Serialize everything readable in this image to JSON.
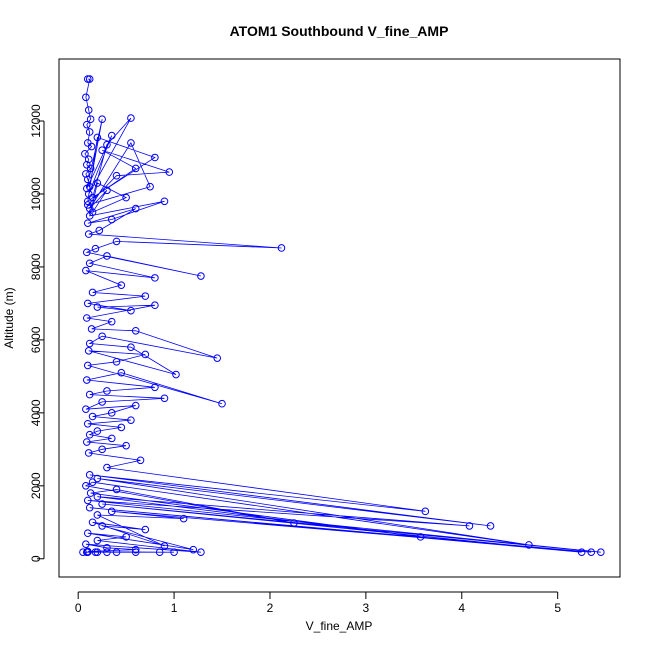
{
  "chart_data": {
    "type": "line",
    "title": "ATOM1 Southbound V_fine_AMP",
    "xlabel": "V_fine_AMP",
    "ylabel": "Altitude (m)",
    "xlim": [
      -0.2,
      5.65
    ],
    "ylim": [
      -500,
      13700
    ],
    "xticks": [
      0,
      1,
      2,
      3,
      4,
      5
    ],
    "yticks": [
      0,
      2000,
      4000,
      6000,
      8000,
      10000,
      12000
    ],
    "marker": "open-circle",
    "grid": false,
    "legend": "none",
    "color": "#0000ff",
    "series": [
      {
        "x": [
          0.1,
          0.12,
          0.08,
          0.11,
          0.13,
          0.09,
          0.12,
          0.1,
          0.14,
          0.07,
          0.11,
          0.09,
          0.13,
          0.08,
          0.1,
          0.12,
          0.25,
          0.09,
          0.35,
          0.11,
          0.55,
          0.3,
          0.15,
          0.8,
          0.2,
          0.1,
          0.6,
          0.25,
          0.95,
          0.4,
          0.1,
          0.75,
          0.55,
          0.12,
          0.3,
          0.15,
          0.5,
          0.2,
          0.12,
          0.9,
          0.35,
          0.1,
          0.6,
          0.22,
          0.11,
          2.12,
          0.4,
          0.18,
          0.09,
          1.28,
          0.3,
          0.12,
          0.8,
          0.08,
          0.45,
          0.15,
          0.7,
          0.1,
          0.55,
          0.2,
          0.8,
          0.09,
          0.35,
          0.14,
          0.6,
          1.45,
          0.25,
          0.12,
          0.55,
          1.02,
          0.11,
          0.7,
          0.4,
          0.1,
          1.5,
          0.45,
          0.09,
          0.8,
          0.3,
          0.12,
          0.9,
          0.25,
          0.08,
          0.6,
          0.35,
          0.15,
          0.55,
          0.1,
          0.45,
          0.2,
          0.12,
          0.35,
          0.09,
          0.5,
          0.25,
          0.11,
          0.65,
          0.3,
          3.62,
          0.12,
          4.3,
          0.2,
          4.7,
          0.15,
          0.08,
          2.25,
          0.4,
          0.13,
          3.57,
          0.2,
          4.08,
          0.1,
          5.45,
          0.25,
          5.25,
          0.12,
          5.35,
          0.35,
          1.1,
          0.2,
          0.9,
          0.15,
          0.7,
          0.25,
          1.2,
          0.1,
          0.5,
          0.2,
          1.28,
          0.08,
          0.3,
          0.6,
          0.1,
          0.85,
          0.18,
          0.4,
          1.0,
          0.09,
          0.2,
          0.6,
          0.1,
          0.3,
          0.05
        ],
        "y": [
          13150,
          13150,
          12650,
          12300,
          12050,
          11900,
          11700,
          11400,
          11300,
          11100,
          10950,
          10800,
          10700,
          10550,
          10400,
          10200,
          12050,
          10150,
          11600,
          10000,
          12080,
          11350,
          9900,
          11000,
          11550,
          9800,
          10700,
          11200,
          10600,
          10500,
          9700,
          10200,
          11400,
          9600,
          10100,
          9500,
          9900,
          10300,
          9400,
          9800,
          9300,
          9200,
          9600,
          9000,
          8900,
          8520,
          8700,
          8500,
          8400,
          7750,
          8300,
          8100,
          7700,
          7900,
          7500,
          7300,
          7200,
          7000,
          6800,
          6900,
          6950,
          6600,
          6500,
          6300,
          6250,
          5500,
          6100,
          5900,
          5800,
          5050,
          5700,
          5600,
          5400,
          5300,
          4250,
          5100,
          4900,
          4700,
          4600,
          4500,
          4400,
          4300,
          4100,
          4200,
          4000,
          3900,
          3800,
          3700,
          3600,
          3500,
          3400,
          3300,
          3200,
          3100,
          3000,
          2900,
          2700,
          2500,
          1300,
          2300,
          900,
          2200,
          380,
          2100,
          2000,
          980,
          1900,
          1800,
          600,
          1700,
          900,
          1600,
          180,
          1500,
          180,
          1400,
          180,
          1300,
          1100,
          1200,
          350,
          1000,
          800,
          900,
          250,
          700,
          600,
          500,
          180,
          400,
          300,
          250,
          200,
          180,
          180,
          180,
          180,
          180,
          180,
          180,
          180,
          180,
          180
        ]
      }
    ]
  }
}
